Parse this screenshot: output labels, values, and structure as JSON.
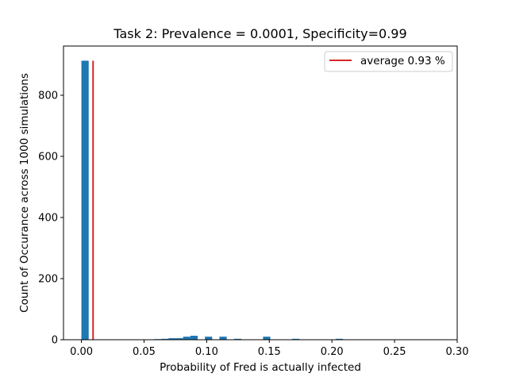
{
  "chart_data": {
    "type": "bar",
    "title": "Task 2: Prevalence = 0.0001, Specificity=0.99",
    "xlabel": "Probability of Fred is actually infected",
    "ylabel": "Count of Occurance across 1000 simulations",
    "xlim": [
      -0.0143,
      0.3
    ],
    "ylim": [
      0,
      961
    ],
    "x_ticks": [
      0.0,
      0.05,
      0.1,
      0.15,
      0.2,
      0.25,
      0.3
    ],
    "x_tick_labels": [
      "0.00",
      "0.05",
      "0.10",
      "0.15",
      "0.20",
      "0.25",
      "0.30"
    ],
    "y_ticks": [
      0,
      200,
      400,
      600,
      800
    ],
    "y_tick_labels": [
      "0",
      "200",
      "400",
      "600",
      "800"
    ],
    "bin_width": 0.0058,
    "bars": [
      {
        "x": 0.0029,
        "value": 913
      },
      {
        "x": 0.0609,
        "value": 2
      },
      {
        "x": 0.0667,
        "value": 3
      },
      {
        "x": 0.0725,
        "value": 5
      },
      {
        "x": 0.0783,
        "value": 5
      },
      {
        "x": 0.0841,
        "value": 10
      },
      {
        "x": 0.0899,
        "value": 13
      },
      {
        "x": 0.1015,
        "value": 10
      },
      {
        "x": 0.1131,
        "value": 10
      },
      {
        "x": 0.1247,
        "value": 3
      },
      {
        "x": 0.1479,
        "value": 10
      },
      {
        "x": 0.1711,
        "value": 3
      },
      {
        "x": 0.2059,
        "value": 3
      }
    ],
    "bar_color": "#1f77b4",
    "reference_line": {
      "x": 0.0093,
      "y_top": 913,
      "color": "#d62728"
    },
    "legend": {
      "position": "top-right",
      "label": "average 0.93 %"
    },
    "grid": false
  }
}
